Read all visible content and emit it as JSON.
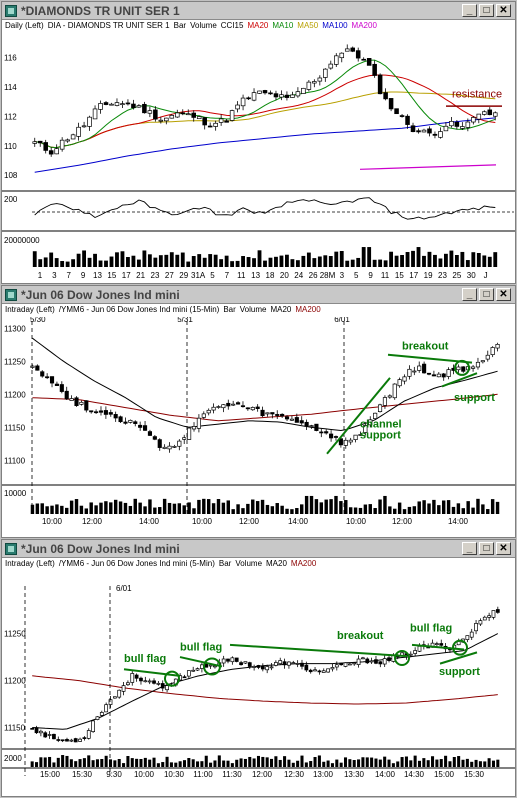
{
  "windows": [
    {
      "title": "*DIAMONDS TR UNIT SER 1",
      "legend": [
        "Daily (Left)",
        "DIA - DIAMONDS TR UNIT SER 1",
        "Bar",
        "Volume",
        "CCI15",
        "MA20",
        "MA10",
        "MA50",
        "MA100",
        "MA200"
      ],
      "y_ticks": [
        "116",
        "114",
        "112",
        "110",
        "108"
      ],
      "cci_tick": "200",
      "vol_tick": "20000000",
      "x_ticks": [
        "1",
        "3",
        "7",
        "9",
        "13",
        "15",
        "17",
        "21",
        "23",
        "27",
        "29",
        "31A",
        "5",
        "7",
        "11",
        "13",
        "18",
        "20",
        "24",
        "26",
        "28M",
        "3",
        "5",
        "9",
        "11",
        "15",
        "17",
        "19",
        "23",
        "25",
        "30",
        "J"
      ],
      "annotations": [
        "resistance"
      ]
    },
    {
      "title": "*Jun 06  Dow Jones Ind mini",
      "legend": [
        "Intraday (Left)",
        "/YMM6 - Jun 06  Dow Jones Ind mini (15-Min)",
        "Bar",
        "Volume",
        "MA20",
        "MA200"
      ],
      "date_marks": [
        "5/30",
        "5/31",
        "6/01"
      ],
      "y_ticks": [
        "11300",
        "11250",
        "11200",
        "11150",
        "11100"
      ],
      "vol_tick": "10000",
      "x_ticks": [
        "10:00",
        "12:00",
        "14:00",
        "10:00",
        "12:00",
        "14:00",
        "10:00",
        "12:00",
        "14:00"
      ],
      "annotations": [
        "breakout",
        "support",
        "channel",
        "support"
      ]
    },
    {
      "title": "*Jun 06  Dow Jones Ind mini",
      "legend": [
        "Intraday (Left)",
        "/YMM6 - Jun 06  Dow Jones Ind mini (5-Min)",
        "Bar",
        "Volume",
        "MA20",
        "MA200"
      ],
      "date_marks": [
        "6/01"
      ],
      "y_ticks": [
        "11250",
        "11200",
        "11150"
      ],
      "vol_tick": "2000",
      "x_ticks": [
        "15:00",
        "15:30",
        "9:30",
        "10:00",
        "10:30",
        "11:00",
        "11:30",
        "12:00",
        "12:30",
        "13:00",
        "13:30",
        "14:00",
        "14:30",
        "15:00",
        "15:30"
      ],
      "annotations": [
        "bull flag",
        "bull flag",
        "breakout",
        "bull flag",
        "support"
      ]
    }
  ],
  "colors": {
    "ma20": "#cc0000",
    "ma10": "#0a8a0a",
    "ma50": "#b8a000",
    "ma100": "#0000cc",
    "ma200": "#cc00cc",
    "annot_green": "#0a7a0a",
    "annot_red": "#8b0000"
  },
  "buttons": {
    "minimize": "_",
    "maximize": "□",
    "close": "✕"
  }
}
